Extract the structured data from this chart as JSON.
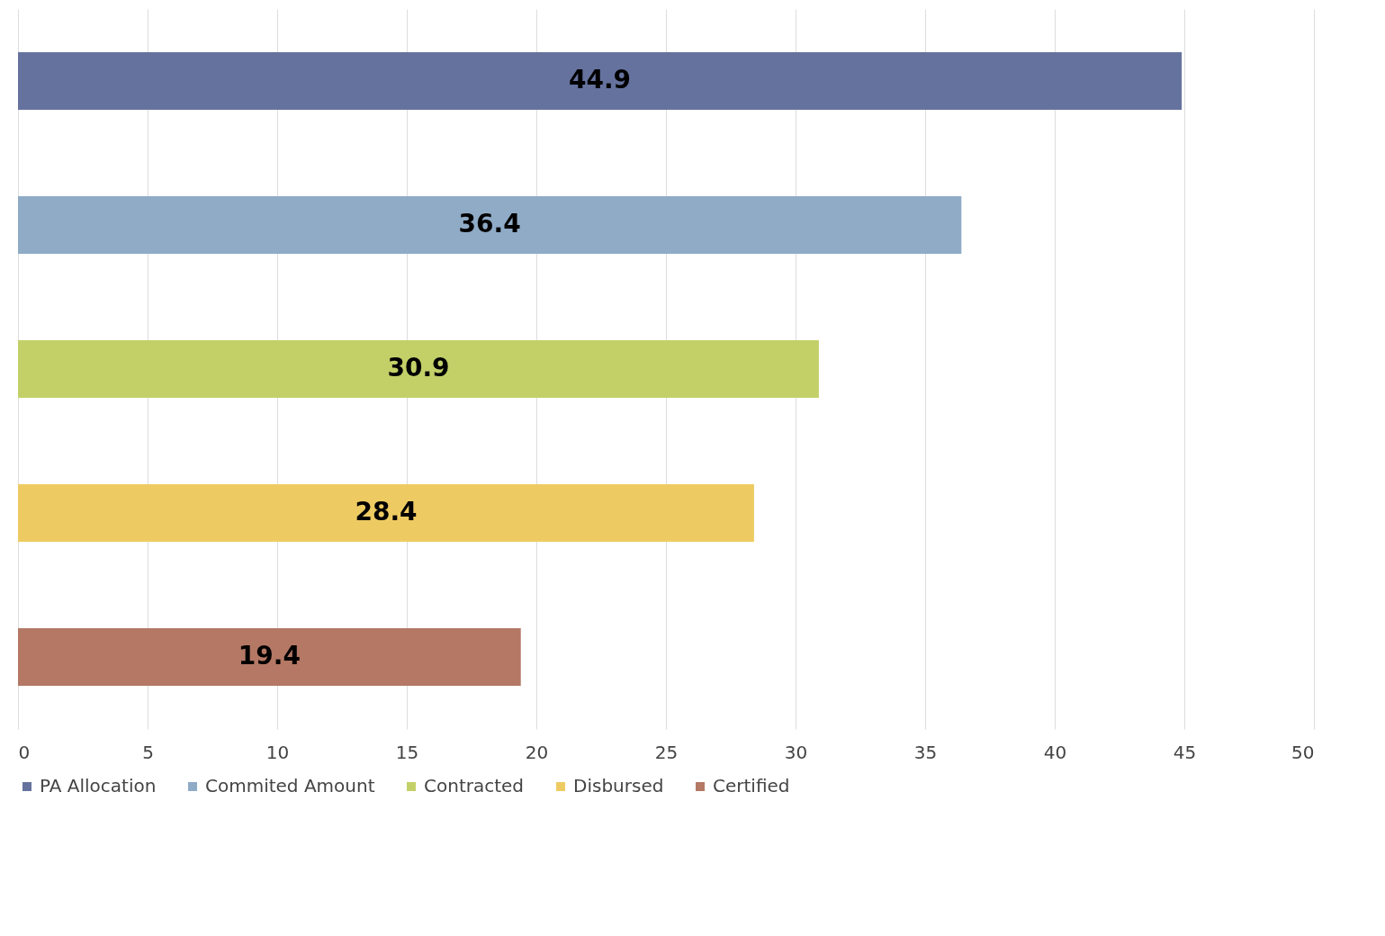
{
  "chart_data": {
    "type": "bar",
    "orientation": "horizontal",
    "categories": [
      null,
      null,
      null,
      null,
      null
    ],
    "series": [
      {
        "name": "PA Allocation",
        "color": "#66729e",
        "values": [
          44.9,
          null,
          null,
          null,
          null
        ]
      },
      {
        "name": "Commited Amount",
        "color": "#8fabc6",
        "values": [
          null,
          36.4,
          null,
          null,
          null
        ]
      },
      {
        "name": "Contracted",
        "color": "#c3d068",
        "values": [
          null,
          null,
          30.9,
          null,
          null
        ]
      },
      {
        "name": "Disbursed",
        "color": "#eecb62",
        "values": [
          null,
          null,
          null,
          28.4,
          null
        ]
      },
      {
        "name": "Certified",
        "color": "#b47865",
        "values": [
          null,
          null,
          null,
          null,
          19.4
        ]
      }
    ],
    "xlim": [
      0,
      50
    ],
    "xticks": [
      0,
      5,
      10,
      15,
      20,
      25,
      30,
      35,
      40,
      45,
      50
    ],
    "grid": "x",
    "legend": "bottom",
    "data_labels": true,
    "tick_labels": "x"
  }
}
